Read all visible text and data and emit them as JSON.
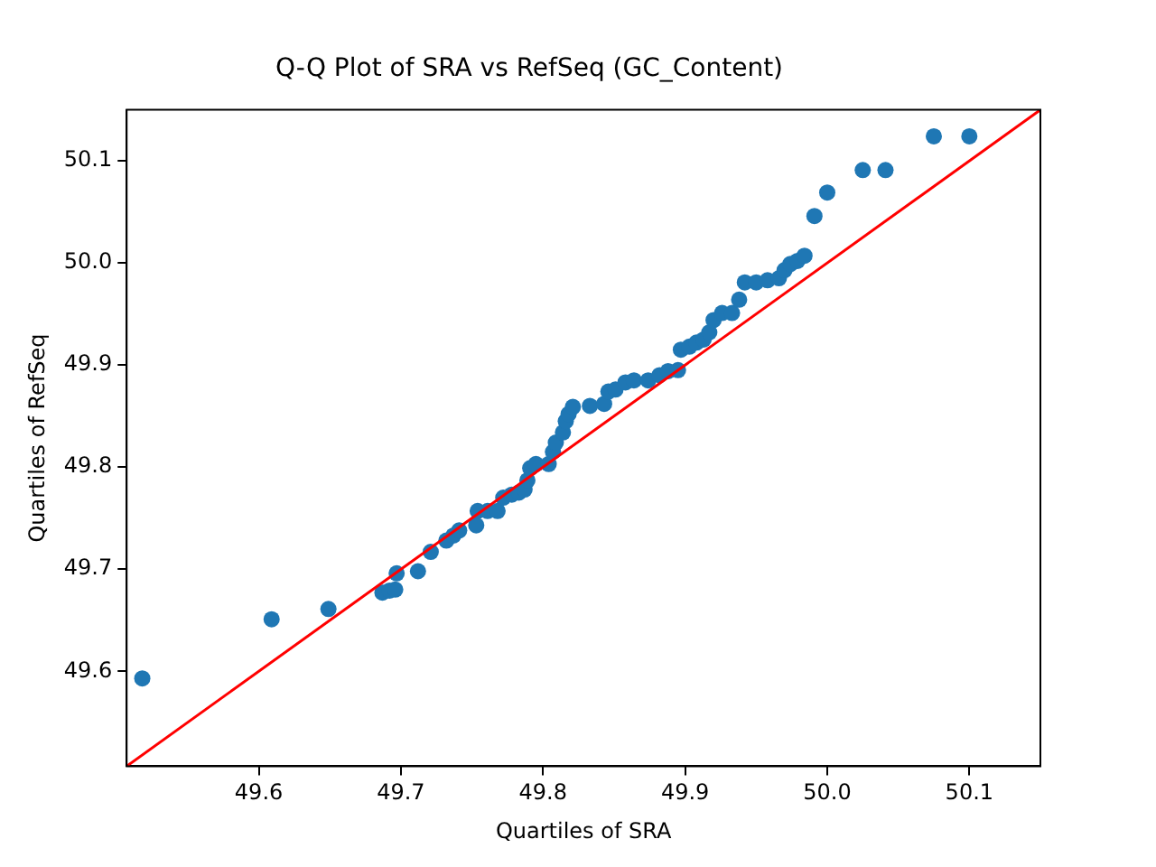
{
  "chart_data": {
    "type": "scatter",
    "title": "Q-Q Plot of SRA vs RefSeq (GC_Content)",
    "xlabel": "Quartiles of SRA",
    "ylabel": "Quartiles of RefSeq",
    "xlim": [
      49.507,
      50.15
    ],
    "ylim": [
      49.507,
      50.15
    ],
    "xticks": [
      49.6,
      49.7,
      49.8,
      49.9,
      {
        "value": 50,
        "label": "50.0"
      },
      50.1
    ],
    "yticks": [
      49.6,
      49.7,
      49.8,
      49.9,
      {
        "value": 50,
        "label": "50.0"
      },
      50.1
    ],
    "grid": false,
    "legend": false,
    "series": [
      {
        "color": "#1f77b4",
        "marker": "circle",
        "x": [
          49.518,
          49.609,
          49.649,
          49.687,
          49.692,
          49.696,
          49.697,
          49.712,
          49.721,
          49.732,
          49.737,
          49.741,
          49.753,
          49.754,
          49.761,
          49.768,
          49.772,
          49.778,
          49.783,
          49.787,
          49.789,
          49.791,
          49.795,
          49.804,
          49.807,
          49.809,
          49.814,
          49.816,
          49.818,
          49.821,
          49.833,
          49.843,
          49.846,
          49.851,
          49.858,
          49.864,
          49.874,
          49.882,
          49.888,
          49.895,
          49.897,
          49.903,
          49.908,
          49.913,
          49.917,
          49.92,
          49.926,
          49.933,
          49.938,
          49.942,
          49.95,
          49.958,
          49.966,
          49.97,
          49.974,
          49.979,
          49.984,
          49.991,
          50.0,
          50.025,
          50.041,
          50.075,
          50.1
        ],
        "values": [
          49.593,
          49.651,
          49.661,
          49.677,
          49.679,
          49.68,
          49.696,
          49.698,
          49.717,
          49.728,
          49.733,
          49.738,
          49.743,
          49.757,
          49.757,
          49.757,
          49.77,
          49.773,
          49.775,
          49.778,
          49.787,
          49.799,
          49.803,
          49.803,
          49.815,
          49.824,
          49.834,
          49.845,
          49.852,
          49.859,
          49.86,
          49.862,
          49.874,
          49.876,
          49.883,
          49.885,
          49.885,
          49.89,
          49.894,
          49.895,
          49.915,
          49.918,
          49.922,
          49.925,
          49.932,
          49.944,
          49.951,
          49.951,
          49.964,
          49.981,
          49.981,
          49.983,
          49.985,
          49.993,
          49.999,
          50.002,
          50.007,
          50.046,
          50.069,
          50.091,
          50.091,
          50.124,
          50.124
        ]
      },
      {
        "type": "line",
        "color": "#ff0000",
        "marker": "none",
        "line_style": "solid",
        "x": [
          49.507,
          50.15
        ],
        "values": [
          49.507,
          50.15
        ]
      }
    ]
  }
}
